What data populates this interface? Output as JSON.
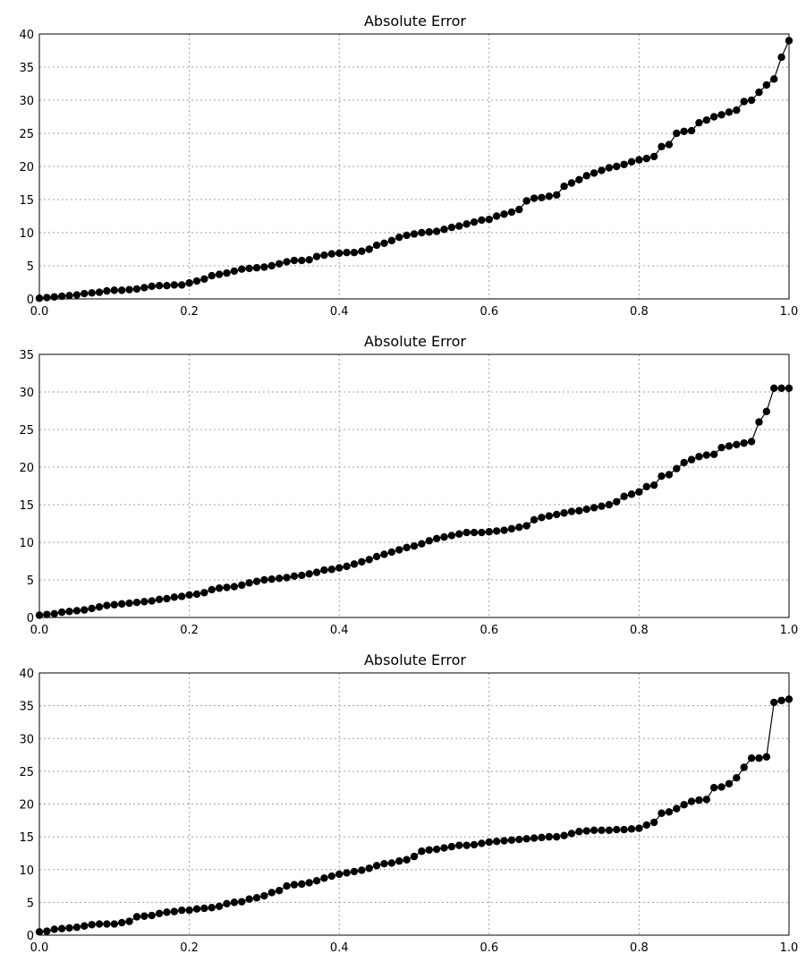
{
  "chart_data": [
    {
      "type": "line",
      "title": "Absolute Error",
      "xlabel": "",
      "ylabel": "",
      "xlim": [
        0,
        1
      ],
      "ylim": [
        0,
        40
      ],
      "xticks": [
        "0.0",
        "0.2",
        "0.4",
        "0.6",
        "0.8",
        "1.0"
      ],
      "yticks": [
        "0",
        "5",
        "10",
        "15",
        "20",
        "25",
        "30",
        "35",
        "40"
      ],
      "grid": true,
      "marker": "circle",
      "color": "#000000",
      "series": [
        {
          "x": [
            0.0,
            0.01,
            0.02,
            0.03,
            0.04,
            0.05,
            0.06,
            0.07,
            0.08,
            0.09,
            0.1,
            0.11,
            0.12,
            0.13,
            0.14,
            0.15,
            0.16,
            0.17,
            0.18,
            0.19,
            0.2,
            0.21,
            0.22,
            0.23,
            0.24,
            0.25,
            0.26,
            0.27,
            0.28,
            0.29,
            0.3,
            0.31,
            0.32,
            0.33,
            0.34,
            0.35,
            0.36,
            0.37,
            0.38,
            0.39,
            0.4,
            0.41,
            0.42,
            0.43,
            0.44,
            0.45,
            0.46,
            0.47,
            0.48,
            0.49,
            0.5,
            0.51,
            0.52,
            0.53,
            0.54,
            0.55,
            0.56,
            0.57,
            0.58,
            0.59,
            0.6,
            0.61,
            0.62,
            0.63,
            0.64,
            0.65,
            0.66,
            0.67,
            0.68,
            0.69,
            0.7,
            0.71,
            0.72,
            0.73,
            0.74,
            0.75,
            0.76,
            0.77,
            0.78,
            0.79,
            0.8,
            0.81,
            0.82,
            0.83,
            0.84,
            0.85,
            0.86,
            0.87,
            0.88,
            0.89,
            0.9,
            0.91,
            0.92,
            0.93,
            0.94,
            0.95,
            0.96,
            0.97,
            0.98,
            0.99,
            1.0
          ],
          "values": [
            0.1,
            0.2,
            0.3,
            0.4,
            0.5,
            0.6,
            0.8,
            0.9,
            1.0,
            1.2,
            1.3,
            1.3,
            1.4,
            1.5,
            1.7,
            1.9,
            2.0,
            2.0,
            2.1,
            2.1,
            2.4,
            2.7,
            3.0,
            3.5,
            3.7,
            3.9,
            4.2,
            4.5,
            4.6,
            4.7,
            4.8,
            5.0,
            5.3,
            5.6,
            5.8,
            5.8,
            5.9,
            6.4,
            6.6,
            6.8,
            6.9,
            7.0,
            7.0,
            7.2,
            7.5,
            8.1,
            8.4,
            8.8,
            9.3,
            9.6,
            9.8,
            10.0,
            10.1,
            10.2,
            10.5,
            10.8,
            11.0,
            11.3,
            11.6,
            11.9,
            12.0,
            12.5,
            12.8,
            13.1,
            13.5,
            14.8,
            15.2,
            15.3,
            15.5,
            15.7,
            17.0,
            17.5,
            18.0,
            18.6,
            19.0,
            19.4,
            19.8,
            20.0,
            20.3,
            20.7,
            21.0,
            21.2,
            21.5,
            23.0,
            23.3,
            25.0,
            25.3,
            25.4,
            26.6,
            27.0,
            27.5,
            27.8,
            28.2,
            28.5,
            29.8,
            30.0,
            31.2,
            32.3,
            33.2,
            36.5,
            39.0
          ]
        }
      ]
    },
    {
      "type": "line",
      "title": "Absolute Error",
      "xlabel": "",
      "ylabel": "",
      "xlim": [
        0,
        1
      ],
      "ylim": [
        0,
        35
      ],
      "xticks": [
        "0.0",
        "0.2",
        "0.4",
        "0.6",
        "0.8",
        "1.0"
      ],
      "yticks": [
        "0",
        "5",
        "10",
        "15",
        "20",
        "25",
        "30",
        "35"
      ],
      "grid": true,
      "marker": "circle",
      "color": "#000000",
      "series": [
        {
          "x": [
            0.0,
            0.01,
            0.02,
            0.03,
            0.04,
            0.05,
            0.06,
            0.07,
            0.08,
            0.09,
            0.1,
            0.11,
            0.12,
            0.13,
            0.14,
            0.15,
            0.16,
            0.17,
            0.18,
            0.19,
            0.2,
            0.21,
            0.22,
            0.23,
            0.24,
            0.25,
            0.26,
            0.27,
            0.28,
            0.29,
            0.3,
            0.31,
            0.32,
            0.33,
            0.34,
            0.35,
            0.36,
            0.37,
            0.38,
            0.39,
            0.4,
            0.41,
            0.42,
            0.43,
            0.44,
            0.45,
            0.46,
            0.47,
            0.48,
            0.49,
            0.5,
            0.51,
            0.52,
            0.53,
            0.54,
            0.55,
            0.56,
            0.57,
            0.58,
            0.59,
            0.6,
            0.61,
            0.62,
            0.63,
            0.64,
            0.65,
            0.66,
            0.67,
            0.68,
            0.69,
            0.7,
            0.71,
            0.72,
            0.73,
            0.74,
            0.75,
            0.76,
            0.77,
            0.78,
            0.79,
            0.8,
            0.81,
            0.82,
            0.83,
            0.84,
            0.85,
            0.86,
            0.87,
            0.88,
            0.89,
            0.9,
            0.91,
            0.92,
            0.93,
            0.94,
            0.95,
            0.96,
            0.97,
            0.98,
            0.99,
            1.0
          ],
          "values": [
            0.3,
            0.4,
            0.5,
            0.7,
            0.8,
            0.9,
            1.0,
            1.2,
            1.4,
            1.6,
            1.7,
            1.8,
            1.9,
            2.0,
            2.1,
            2.2,
            2.4,
            2.5,
            2.7,
            2.8,
            3.0,
            3.1,
            3.3,
            3.7,
            3.9,
            4.0,
            4.1,
            4.3,
            4.6,
            4.8,
            5.0,
            5.1,
            5.2,
            5.3,
            5.5,
            5.6,
            5.8,
            6.0,
            6.3,
            6.4,
            6.6,
            6.8,
            7.1,
            7.4,
            7.7,
            8.1,
            8.4,
            8.7,
            9.0,
            9.3,
            9.5,
            9.8,
            10.2,
            10.5,
            10.7,
            10.9,
            11.1,
            11.3,
            11.3,
            11.3,
            11.4,
            11.5,
            11.6,
            11.8,
            12.0,
            12.2,
            13.0,
            13.3,
            13.5,
            13.7,
            13.9,
            14.1,
            14.2,
            14.4,
            14.6,
            14.8,
            15.0,
            15.4,
            16.1,
            16.4,
            16.7,
            17.4,
            17.6,
            18.8,
            19.0,
            19.8,
            20.6,
            21.0,
            21.4,
            21.6,
            21.7,
            22.6,
            22.8,
            23.0,
            23.2,
            23.4,
            26.0,
            27.4,
            30.5,
            30.5,
            30.5
          ]
        }
      ]
    },
    {
      "type": "line",
      "title": "Absolute Error",
      "xlabel": "",
      "ylabel": "",
      "xlim": [
        0,
        1
      ],
      "ylim": [
        0,
        40
      ],
      "xticks": [
        "0.0",
        "0.2",
        "0.4",
        "0.6",
        "0.8",
        "1.0"
      ],
      "yticks": [
        "0",
        "5",
        "10",
        "15",
        "20",
        "25",
        "30",
        "35",
        "40"
      ],
      "grid": true,
      "marker": "circle",
      "color": "#000000",
      "series": [
        {
          "x": [
            0.0,
            0.01,
            0.02,
            0.03,
            0.04,
            0.05,
            0.06,
            0.07,
            0.08,
            0.09,
            0.1,
            0.11,
            0.12,
            0.13,
            0.14,
            0.15,
            0.16,
            0.17,
            0.18,
            0.19,
            0.2,
            0.21,
            0.22,
            0.23,
            0.24,
            0.25,
            0.26,
            0.27,
            0.28,
            0.29,
            0.3,
            0.31,
            0.32,
            0.33,
            0.34,
            0.35,
            0.36,
            0.37,
            0.38,
            0.39,
            0.4,
            0.41,
            0.42,
            0.43,
            0.44,
            0.45,
            0.46,
            0.47,
            0.48,
            0.49,
            0.5,
            0.51,
            0.52,
            0.53,
            0.54,
            0.55,
            0.56,
            0.57,
            0.58,
            0.59,
            0.6,
            0.61,
            0.62,
            0.63,
            0.64,
            0.65,
            0.66,
            0.67,
            0.68,
            0.69,
            0.7,
            0.71,
            0.72,
            0.73,
            0.74,
            0.75,
            0.76,
            0.77,
            0.78,
            0.79,
            0.8,
            0.81,
            0.82,
            0.83,
            0.84,
            0.85,
            0.86,
            0.87,
            0.88,
            0.89,
            0.9,
            0.91,
            0.92,
            0.93,
            0.94,
            0.95,
            0.96,
            0.97,
            0.98,
            0.99,
            1.0
          ],
          "values": [
            0.5,
            0.6,
            0.9,
            1.0,
            1.1,
            1.2,
            1.4,
            1.6,
            1.7,
            1.7,
            1.7,
            1.9,
            2.1,
            2.8,
            2.9,
            3.0,
            3.3,
            3.5,
            3.6,
            3.8,
            3.8,
            4.0,
            4.1,
            4.2,
            4.4,
            4.8,
            5.0,
            5.1,
            5.5,
            5.7,
            6.0,
            6.5,
            6.8,
            7.5,
            7.7,
            7.8,
            8.0,
            8.3,
            8.7,
            9.0,
            9.3,
            9.5,
            9.7,
            9.9,
            10.2,
            10.6,
            10.9,
            11.0,
            11.3,
            11.5,
            12.0,
            12.8,
            13.0,
            13.1,
            13.3,
            13.5,
            13.7,
            13.7,
            13.8,
            14.0,
            14.2,
            14.3,
            14.4,
            14.5,
            14.6,
            14.7,
            14.8,
            14.9,
            15.0,
            15.0,
            15.2,
            15.5,
            15.8,
            15.9,
            16.0,
            16.0,
            16.0,
            16.1,
            16.1,
            16.2,
            16.3,
            16.8,
            17.2,
            18.6,
            18.8,
            19.3,
            19.9,
            20.4,
            20.6,
            20.7,
            22.5,
            22.6,
            23.1,
            24.0,
            25.6,
            27.0,
            27.0,
            27.2,
            35.5,
            35.8,
            36.0
          ]
        }
      ]
    }
  ]
}
